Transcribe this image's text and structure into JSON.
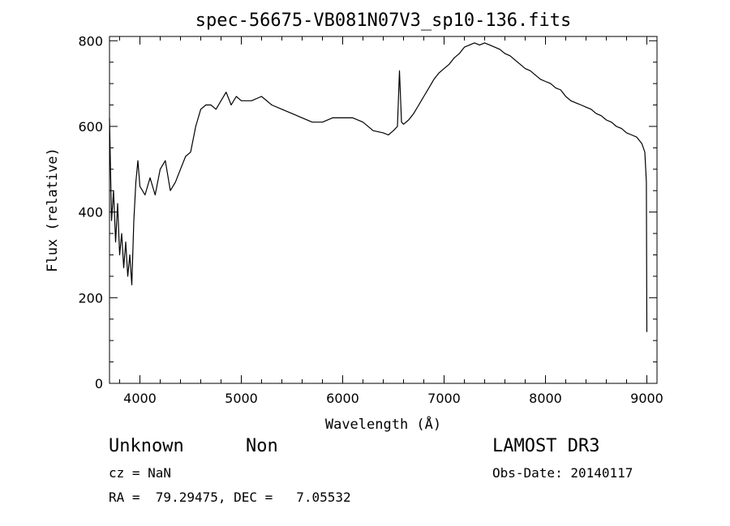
{
  "chart_data": {
    "type": "line",
    "title": "spec-56675-VB081N07V3_sp10-136.fits",
    "xlabel": "Wavelength (Å)",
    "ylabel": "Flux (relative)",
    "xlim": [
      3700,
      9100
    ],
    "ylim": [
      0,
      810
    ],
    "xticks": [
      4000,
      5000,
      6000,
      7000,
      8000,
      9000
    ],
    "yticks": [
      0,
      200,
      400,
      600,
      800
    ],
    "grid": false,
    "series": [
      {
        "x": [
          3700,
          3720,
          3740,
          3760,
          3780,
          3800,
          3820,
          3840,
          3860,
          3880,
          3900,
          3920,
          3940,
          3960,
          3980,
          4000,
          4050,
          4100,
          4150,
          4200,
          4250,
          4300,
          4350,
          4400,
          4450,
          4500,
          4550,
          4600,
          4650,
          4700,
          4750,
          4800,
          4850,
          4900,
          4950,
          5000,
          5100,
          5200,
          5300,
          5400,
          5500,
          5600,
          5700,
          5800,
          5900,
          6000,
          6100,
          6200,
          6300,
          6400,
          6450,
          6500,
          6540,
          6560,
          6580,
          6600,
          6650,
          6700,
          6750,
          6800,
          6850,
          6900,
          6950,
          7000,
          7050,
          7100,
          7150,
          7200,
          7250,
          7300,
          7350,
          7400,
          7450,
          7500,
          7550,
          7600,
          7650,
          7700,
          7750,
          7800,
          7850,
          7900,
          7950,
          8000,
          8050,
          8100,
          8150,
          8200,
          8250,
          8300,
          8350,
          8400,
          8450,
          8500,
          8550,
          8600,
          8650,
          8700,
          8750,
          8800,
          8850,
          8900,
          8950,
          8980,
          8995,
          9000
        ],
        "y": [
          620,
          380,
          450,
          330,
          420,
          300,
          350,
          270,
          330,
          250,
          300,
          230,
          380,
          470,
          520,
          460,
          440,
          480,
          440,
          500,
          520,
          450,
          470,
          500,
          530,
          540,
          600,
          640,
          650,
          650,
          640,
          660,
          680,
          650,
          670,
          660,
          660,
          670,
          650,
          640,
          630,
          620,
          610,
          610,
          620,
          620,
          620,
          610,
          590,
          585,
          580,
          590,
          600,
          730,
          610,
          605,
          615,
          630,
          650,
          670,
          690,
          710,
          725,
          735,
          745,
          760,
          770,
          785,
          790,
          795,
          790,
          795,
          790,
          785,
          780,
          770,
          765,
          755,
          745,
          735,
          730,
          720,
          710,
          705,
          700,
          690,
          685,
          670,
          660,
          655,
          650,
          645,
          640,
          630,
          625,
          615,
          610,
          600,
          595,
          585,
          580,
          575,
          560,
          540,
          470,
          120
        ]
      }
    ]
  },
  "footer": {
    "object_type": "Unknown",
    "object_subclass": "Non",
    "survey": "LAMOST DR3",
    "cz": "cz = NaN",
    "obs_date": "Obs-Date: 20140117",
    "coords": "RA =  79.29475, DEC =   7.05532"
  }
}
